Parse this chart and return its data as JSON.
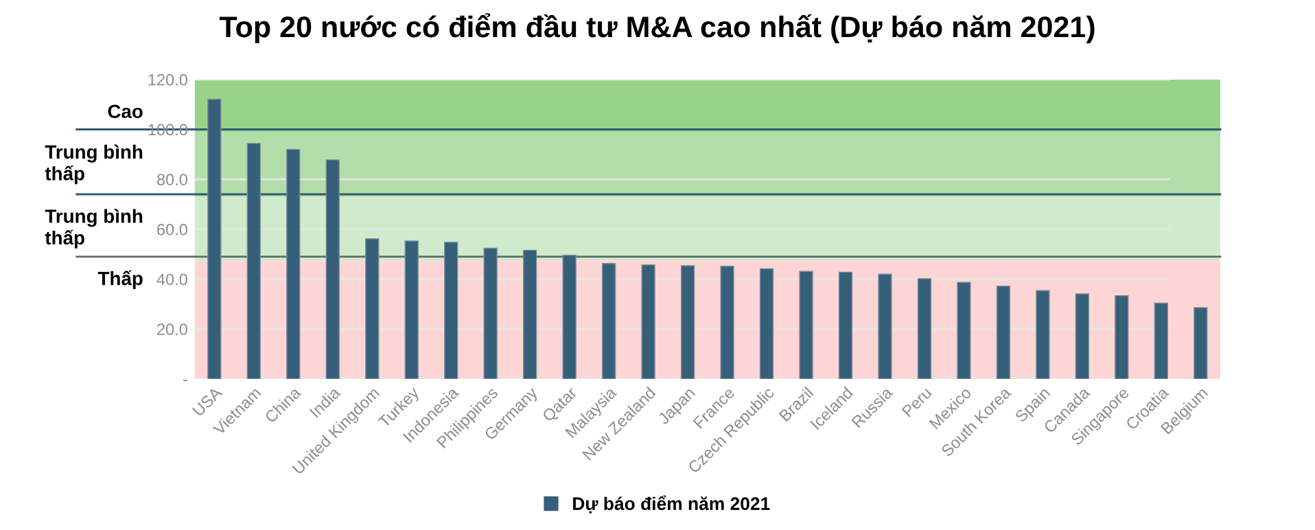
{
  "chart_data": {
    "type": "bar",
    "title": "Top 20 nước có điểm đầu tư M&A cao nhất (Dự báo năm 2021)",
    "categories": [
      "USA",
      "Vietnam",
      "China",
      "India",
      "United Kingdom",
      "Turkey",
      "Indonesia",
      "Philippines",
      "Germany",
      "Qatar",
      "Malaysia",
      "New Zealand",
      "Japan",
      "France",
      "Czech Republic",
      "Brazil",
      "Iceland",
      "Russia",
      "Peru",
      "Mexico",
      "South Korea",
      "Spain",
      "Canada",
      "Singapore",
      "Croatia",
      "Belgium"
    ],
    "series": [
      {
        "name": "Dự báo điểm năm 2021",
        "color": "#36607a",
        "values": [
          112.1,
          94.4,
          92.0,
          87.8,
          56.2,
          55.3,
          54.8,
          52.4,
          51.6,
          49.6,
          46.3,
          45.7,
          45.4,
          45.2,
          44.2,
          43.1,
          42.8,
          42.0,
          40.2,
          38.7,
          37.2,
          35.4,
          34.1,
          33.4,
          30.4,
          28.6
        ]
      }
    ],
    "ylim": [
      0,
      120
    ],
    "yticks": [
      {
        "value": 0,
        "label": "-"
      },
      {
        "value": 20,
        "label": "20.0"
      },
      {
        "value": 40,
        "label": "40.0"
      },
      {
        "value": 60,
        "label": "60.0"
      },
      {
        "value": 80,
        "label": "80.0"
      },
      {
        "value": 100,
        "label": "100.0"
      },
      {
        "value": 120,
        "label": "120.0"
      }
    ],
    "bands": [
      {
        "axis": "y",
        "from": 0,
        "to": 47.5,
        "label": "Thấp",
        "color": "#fdd5d5"
      },
      {
        "axis": "y",
        "from": 47.5,
        "to": 73,
        "label": "Trung bình\nthấp",
        "color": "#d0eacc"
      },
      {
        "axis": "y",
        "from": 73,
        "to": 99,
        "label": "Trung bình\nthấp",
        "color": "#b2dfa9"
      },
      {
        "axis": "y",
        "from": 99,
        "to": 120,
        "label": "Cao",
        "color": "#98d38a"
      }
    ],
    "ref_lines": [
      {
        "axis": "y",
        "value": 100,
        "color": "#2f5a75"
      },
      {
        "axis": "y",
        "value": 74,
        "color": "#2f5a75"
      },
      {
        "axis": "y",
        "value": 49,
        "color": "#5b6b6a"
      }
    ],
    "grid": "y",
    "legend": "bottom"
  }
}
